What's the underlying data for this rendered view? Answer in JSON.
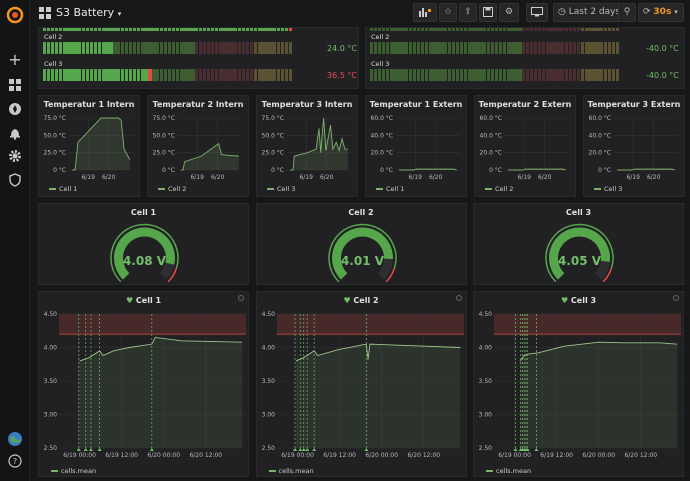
{
  "header": {
    "title": "S3 Battery",
    "time_range": "Last 2 days",
    "refresh": "30s"
  },
  "colors": {
    "green": "#56a64b",
    "green_dim": "#3d5e33",
    "red": "#e24d42",
    "red_dim": "#4a2d30",
    "yellow_dim": "#5a5232",
    "text_green": "#73bf69",
    "text_red": "#f2495c"
  },
  "bargauges": [
    {
      "label": "Cell 2",
      "value": "24.0 °C",
      "fill": 18,
      "value_color": "#73bf69"
    },
    {
      "label": "Cell 3",
      "value": "36.5 °C",
      "fill": 28,
      "value_color": "#f2495c"
    },
    {
      "label": "Cell 2",
      "value": "-40.0 °C",
      "fill": 0,
      "value_color": "#73bf69"
    },
    {
      "label": "Cell 3",
      "value": "-40.0 °C",
      "fill": 0,
      "value_color": "#73bf69"
    }
  ],
  "temp_panels": [
    {
      "title": "Temperatur 1 Intern",
      "yticks": [
        "75.0 °C",
        "50.0 °C",
        "25.0 °C",
        "0 °C"
      ],
      "ymax": 75,
      "xticks": [
        "6/19",
        "6/20"
      ],
      "legend": "Cell 1",
      "series": [
        [
          0,
          0
        ],
        [
          0.05,
          0
        ],
        [
          0.1,
          40
        ],
        [
          0.5,
          75
        ],
        [
          0.8,
          75
        ],
        [
          0.85,
          72
        ],
        [
          0.9,
          30
        ],
        [
          1,
          15
        ]
      ]
    },
    {
      "title": "Temperatur 2 Intern",
      "yticks": [
        "75.0 °C",
        "50.0 °C",
        "25.0 °C",
        "0 °C"
      ],
      "ymax": 75,
      "xticks": [
        "6/19",
        "6/20"
      ],
      "legend": "Cell 2",
      "series": [
        [
          0,
          0
        ],
        [
          0.03,
          0
        ],
        [
          0.06,
          12
        ],
        [
          0.35,
          20
        ],
        [
          0.65,
          38
        ],
        [
          0.7,
          22
        ],
        [
          0.85,
          21
        ],
        [
          1,
          20
        ]
      ]
    },
    {
      "title": "Temperatur 3 Intern",
      "yticks": [
        "75.0 °C",
        "50.0 °C",
        "25.0 °C",
        "0 °C"
      ],
      "ymax": 75,
      "xticks": [
        "6/19",
        "6/20"
      ],
      "legend": "Cell 3",
      "series": [
        [
          0,
          0
        ],
        [
          0.05,
          0
        ],
        [
          0.07,
          20
        ],
        [
          0.3,
          25
        ],
        [
          0.45,
          30
        ],
        [
          0.5,
          60
        ],
        [
          0.53,
          25
        ],
        [
          0.58,
          75
        ],
        [
          0.62,
          28
        ],
        [
          0.7,
          65
        ],
        [
          0.74,
          30
        ],
        [
          0.8,
          40
        ],
        [
          0.85,
          28
        ],
        [
          0.9,
          45
        ],
        [
          0.95,
          30
        ],
        [
          1,
          30
        ]
      ]
    },
    {
      "title": "Temperatur 1 Extern",
      "yticks": [
        "60.0 °C",
        "40.0 °C",
        "20.0 °C",
        "0 °C"
      ],
      "ymax": 60,
      "xticks": [
        "6/19",
        "6/20"
      ],
      "legend": "Cell 1",
      "series": [
        [
          0,
          0
        ],
        [
          0.25,
          0
        ],
        [
          0.3,
          1
        ],
        [
          0.95,
          1
        ],
        [
          1,
          0
        ]
      ]
    },
    {
      "title": "Temperatur 2 Extern",
      "yticks": [
        "60.0 °C",
        "40.0 °C",
        "20.0 °C",
        "0 °C"
      ],
      "ymax": 60,
      "xticks": [
        "6/19",
        "6/20"
      ],
      "legend": "Cell 2",
      "series": [
        [
          0,
          0
        ],
        [
          0.25,
          0
        ],
        [
          0.3,
          1
        ],
        [
          0.95,
          1
        ],
        [
          1,
          0
        ]
      ]
    },
    {
      "title": "Temperatur 3 Extern",
      "yticks": [
        "60.0 °C",
        "40.0 °C",
        "20.0 °C",
        "0 °C"
      ],
      "ymax": 60,
      "xticks": [
        "6/19",
        "6/20"
      ],
      "legend": "Cell 3",
      "series": [
        [
          0,
          0
        ],
        [
          0.25,
          0
        ],
        [
          0.3,
          1
        ],
        [
          0.95,
          1
        ],
        [
          1,
          0
        ]
      ]
    }
  ],
  "gauges": [
    {
      "title": "Cell 1",
      "value": "4.08 V",
      "fraction": 0.88
    },
    {
      "title": "Cell 2",
      "value": "4.01 V",
      "fraction": 0.84
    },
    {
      "title": "Cell 3",
      "value": "4.05 V",
      "fraction": 0.86
    }
  ],
  "voltage_panels": [
    {
      "title": "Cell 1",
      "legend": "cells.mean",
      "yticks": [
        "4.50",
        "4.00",
        "3.50",
        "3.00",
        "2.50"
      ],
      "xticks": [
        "6/19 00:00",
        "6/19 12:00",
        "6/20 00:00",
        "6/20 12:00"
      ],
      "series": [
        [
          0,
          0
        ],
        [
          0.06,
          0
        ],
        [
          0.065,
          3.8
        ],
        [
          0.12,
          3.85
        ],
        [
          0.18,
          3.95
        ],
        [
          0.2,
          3.88
        ],
        [
          0.26,
          3.95
        ],
        [
          0.35,
          4.0
        ],
        [
          0.48,
          4.05
        ],
        [
          0.5,
          4.15
        ],
        [
          0.65,
          4.1
        ],
        [
          1,
          4.08
        ]
      ],
      "markers": [
        0.06,
        0.1,
        0.13,
        0.18,
        0.48
      ]
    },
    {
      "title": "Cell 2",
      "legend": "cells.mean",
      "yticks": [
        "4.50",
        "4.00",
        "3.50",
        "3.00",
        "2.50"
      ],
      "xticks": [
        "6/19 00:00",
        "6/19 12:00",
        "6/20 00:00",
        "6/20 12:00"
      ],
      "series": [
        [
          0,
          0
        ],
        [
          0.05,
          0
        ],
        [
          0.055,
          3.8
        ],
        [
          0.1,
          3.85
        ],
        [
          0.16,
          3.95
        ],
        [
          0.18,
          3.88
        ],
        [
          0.3,
          3.97
        ],
        [
          0.46,
          4.05
        ],
        [
          0.47,
          3.82
        ],
        [
          0.48,
          4.05
        ],
        [
          1,
          4.0
        ]
      ],
      "markers": [
        0.05,
        0.08,
        0.1,
        0.12,
        0.16,
        0.46
      ]
    },
    {
      "title": "Cell 3",
      "legend": "cells.mean",
      "yticks": [
        "4.50",
        "4.00",
        "3.50",
        "3.00",
        "2.50"
      ],
      "xticks": [
        "6/19 00:00",
        "6/19 12:00",
        "6/20 00:00",
        "6/20 12:00"
      ],
      "series": [
        [
          0,
          0
        ],
        [
          0.09,
          0
        ],
        [
          0.095,
          3.8
        ],
        [
          0.12,
          3.88
        ],
        [
          0.14,
          3.9
        ],
        [
          0.2,
          3.92
        ],
        [
          0.35,
          4.02
        ],
        [
          0.55,
          4.08
        ],
        [
          0.7,
          4.07
        ],
        [
          0.9,
          4.07
        ],
        [
          1,
          4.05
        ]
      ],
      "markers": [
        0.07,
        0.1,
        0.11,
        0.12,
        0.13,
        0.14,
        0.19
      ]
    }
  ]
}
